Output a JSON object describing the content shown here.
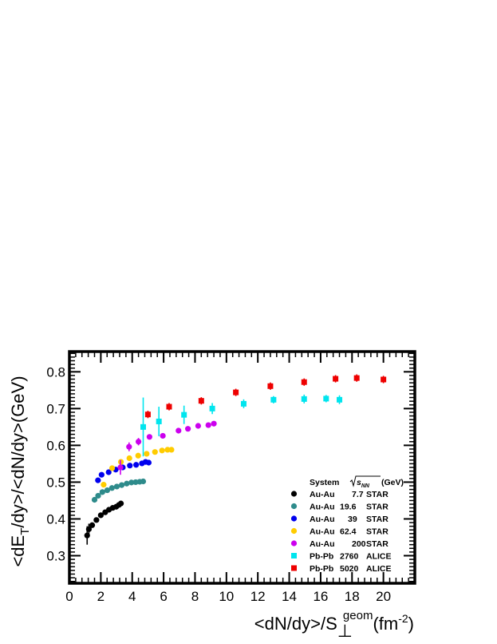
{
  "chart_data": {
    "type": "scatter",
    "xlim": [
      0,
      22
    ],
    "ylim": [
      0.225,
      0.855
    ],
    "x_ticks": [
      0,
      2,
      4,
      6,
      8,
      10,
      12,
      14,
      16,
      18,
      20
    ],
    "y_ticks": [
      0.3,
      0.4,
      0.5,
      0.6,
      0.7,
      0.8
    ],
    "ylabel": {
      "a": "<dE",
      "sub": "T",
      "b": "/dy>/<dN/dy>(GeV)"
    },
    "xlabel": {
      "a": "<dN/dy>/S",
      "sub": "⊥",
      "sup": "geom",
      "b": "(fm",
      "sup2": "-2",
      "c": ")"
    },
    "legend": {
      "header_system": "System",
      "header_energy": "s",
      "header_energy_sub": "NN",
      "header_unit": "(GeV)"
    },
    "series": [
      {
        "system": "Au-Au",
        "energy": "7.7",
        "experiment": "STAR",
        "color": "#000000",
        "marker": "circle",
        "points": [
          [
            1.13,
            0.355,
            0.025
          ],
          [
            1.24,
            0.372,
            0.015
          ],
          [
            1.45,
            0.383,
            0.006
          ],
          [
            1.72,
            0.397,
            0.004
          ],
          [
            2.0,
            0.41,
            0.004
          ],
          [
            2.28,
            0.418,
            0.003
          ],
          [
            2.52,
            0.425,
            0.003
          ],
          [
            2.76,
            0.43,
            0.003
          ],
          [
            2.98,
            0.433,
            0.003
          ],
          [
            3.15,
            0.438,
            0.003
          ],
          [
            3.28,
            0.442,
            0.003
          ]
        ]
      },
      {
        "system": "Au-Au",
        "energy": "19.6",
        "experiment": "STAR",
        "color": "#2e8b8b",
        "marker": "circle",
        "points": [
          [
            1.6,
            0.452,
            0.003
          ],
          [
            1.83,
            0.463,
            0.003
          ],
          [
            2.1,
            0.473,
            0.003
          ],
          [
            2.41,
            0.478,
            0.003
          ],
          [
            2.71,
            0.484,
            0.003
          ],
          [
            3.02,
            0.488,
            0.003
          ],
          [
            3.33,
            0.492,
            0.003
          ],
          [
            3.65,
            0.496,
            0.003
          ],
          [
            3.95,
            0.499,
            0.003
          ],
          [
            4.22,
            0.5,
            0.003
          ],
          [
            4.48,
            0.501,
            0.003
          ],
          [
            4.7,
            0.502,
            0.003
          ]
        ]
      },
      {
        "system": "Au-Au",
        "energy": "39",
        "experiment": "STAR",
        "color": "#0000ee",
        "marker": "circle",
        "points": [
          [
            1.82,
            0.505,
            0.003
          ],
          [
            2.05,
            0.52,
            0.003
          ],
          [
            2.5,
            0.527,
            0.003
          ],
          [
            2.95,
            0.534,
            0.003
          ],
          [
            3.4,
            0.54,
            0.003
          ],
          [
            3.85,
            0.545,
            0.003
          ],
          [
            4.25,
            0.547,
            0.003
          ],
          [
            4.62,
            0.551,
            0.003
          ],
          [
            4.85,
            0.555,
            0.003
          ],
          [
            5.05,
            0.553,
            0.003
          ]
        ]
      },
      {
        "system": "Au-Au",
        "energy": "62.4",
        "experiment": "STAR",
        "color": "#ffcc00",
        "marker": "circle",
        "points": [
          [
            2.18,
            0.493,
            0.003
          ],
          [
            2.72,
            0.538,
            0.003
          ],
          [
            3.28,
            0.555,
            0.003
          ],
          [
            3.82,
            0.565,
            0.003
          ],
          [
            4.38,
            0.572,
            0.003
          ],
          [
            4.92,
            0.577,
            0.003
          ],
          [
            5.45,
            0.582,
            0.003
          ],
          [
            5.9,
            0.586,
            0.003
          ],
          [
            6.25,
            0.588,
            0.003
          ],
          [
            6.5,
            0.588,
            0.003
          ]
        ]
      },
      {
        "system": "Au-Au",
        "energy": "200",
        "experiment": "STAR",
        "color": "#cc00ee",
        "marker": "circle",
        "points": [
          [
            3.25,
            0.54,
            0.02
          ],
          [
            3.8,
            0.596,
            0.012
          ],
          [
            4.4,
            0.61,
            0.01
          ],
          [
            5.1,
            0.623,
            0.003
          ],
          [
            5.95,
            0.626,
            0.003
          ],
          [
            6.95,
            0.64,
            0.003
          ],
          [
            7.55,
            0.645,
            0.003
          ],
          [
            8.2,
            0.653,
            0.003
          ],
          [
            8.85,
            0.655,
            0.003
          ],
          [
            9.2,
            0.659,
            0.003
          ]
        ]
      },
      {
        "system": "Pb-Pb",
        "energy": "2760",
        "experiment": "ALICE",
        "color": "#00e5ee",
        "marker": "square",
        "points": [
          [
            4.7,
            0.65,
            0.08
          ],
          [
            5.7,
            0.665,
            0.04
          ],
          [
            7.3,
            0.683,
            0.025
          ],
          [
            9.1,
            0.7,
            0.015
          ],
          [
            11.1,
            0.713,
            0.012
          ],
          [
            13.0,
            0.724,
            0.01
          ],
          [
            14.95,
            0.726,
            0.012
          ],
          [
            16.35,
            0.727,
            0.01
          ],
          [
            17.2,
            0.724,
            0.012
          ]
        ]
      },
      {
        "system": "Pb-Pb",
        "energy": "5020",
        "experiment": "ALICE",
        "color": "#ee0000",
        "marker": "square",
        "points": [
          [
            5.0,
            0.684,
            0.01
          ],
          [
            6.35,
            0.705,
            0.01
          ],
          [
            8.4,
            0.721,
            0.01
          ],
          [
            10.6,
            0.744,
            0.01
          ],
          [
            12.8,
            0.761,
            0.01
          ],
          [
            14.95,
            0.772,
            0.01
          ],
          [
            16.95,
            0.781,
            0.01
          ],
          [
            18.3,
            0.783,
            0.01
          ],
          [
            20.0,
            0.779,
            0.01
          ]
        ]
      }
    ]
  }
}
